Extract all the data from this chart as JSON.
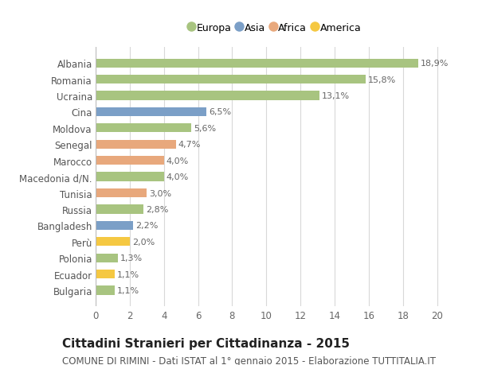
{
  "categories": [
    "Bulgaria",
    "Ecuador",
    "Polonia",
    "Perù",
    "Bangladesh",
    "Russia",
    "Tunisia",
    "Macedonia d/N.",
    "Marocco",
    "Senegal",
    "Moldova",
    "Cina",
    "Ucraina",
    "Romania",
    "Albania"
  ],
  "values": [
    1.1,
    1.1,
    1.3,
    2.0,
    2.2,
    2.8,
    3.0,
    4.0,
    4.0,
    4.7,
    5.6,
    6.5,
    13.1,
    15.8,
    18.9
  ],
  "labels": [
    "1,1%",
    "1,1%",
    "1,3%",
    "2,0%",
    "2,2%",
    "2,8%",
    "3,0%",
    "4,0%",
    "4,0%",
    "4,7%",
    "5,6%",
    "6,5%",
    "13,1%",
    "15,8%",
    "18,9%"
  ],
  "continent": [
    "Europa",
    "America",
    "Europa",
    "America",
    "Asia",
    "Europa",
    "Africa",
    "Europa",
    "Africa",
    "Africa",
    "Europa",
    "Asia",
    "Europa",
    "Europa",
    "Europa"
  ],
  "colors": {
    "Europa": "#a8c480",
    "Asia": "#7b9fc7",
    "Africa": "#e8a87c",
    "America": "#f5c842"
  },
  "legend_labels": [
    "Europa",
    "Asia",
    "Africa",
    "America"
  ],
  "legend_colors": [
    "#a8c480",
    "#7b9fc7",
    "#e8a87c",
    "#f5c842"
  ],
  "title": "Cittadini Stranieri per Cittadinanza - 2015",
  "subtitle": "COMUNE DI RIMINI - Dati ISTAT al 1° gennaio 2015 - Elaborazione TUTTITALIA.IT",
  "xlim": [
    0,
    21
  ],
  "xticks": [
    0,
    2,
    4,
    6,
    8,
    10,
    12,
    14,
    16,
    18,
    20
  ],
  "background_color": "#ffffff",
  "grid_color": "#d8d8d8",
  "bar_height": 0.55,
  "title_fontsize": 11,
  "subtitle_fontsize": 8.5,
  "label_fontsize": 8,
  "tick_fontsize": 8.5,
  "ylabel_fontsize": 8.5
}
